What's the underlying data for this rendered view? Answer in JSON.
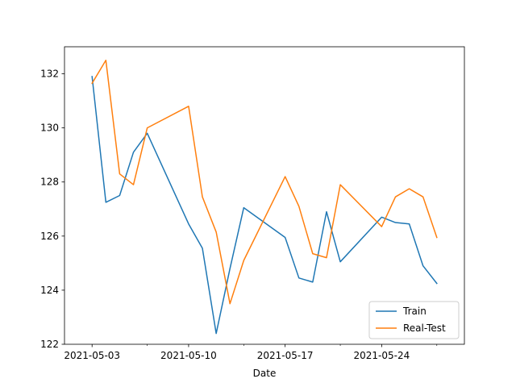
{
  "chart_data": {
    "type": "line",
    "xlabel": "Date",
    "ylabel": "",
    "x": [
      "2021-05-03",
      "2021-05-04",
      "2021-05-05",
      "2021-05-06",
      "2021-05-07",
      "2021-05-10",
      "2021-05-11",
      "2021-05-12",
      "2021-05-13",
      "2021-05-14",
      "2021-05-17",
      "2021-05-18",
      "2021-05-19",
      "2021-05-20",
      "2021-05-21",
      "2021-05-24",
      "2021-05-25",
      "2021-05-26",
      "2021-05-27",
      "2021-05-28"
    ],
    "x_ticks": [
      "2021-05-03",
      "2021-05-10",
      "2021-05-17",
      "2021-05-24"
    ],
    "y_ticks": [
      "122",
      "124",
      "126",
      "128",
      "130",
      "132"
    ],
    "ylim": [
      122,
      133
    ],
    "series": [
      {
        "name": "Train",
        "color": "#1f77b4",
        "values": [
          131.9,
          127.25,
          127.5,
          129.1,
          129.8,
          126.45,
          125.55,
          122.4,
          124.8,
          127.05,
          125.95,
          124.45,
          124.3,
          126.9,
          125.05,
          126.7,
          126.5,
          126.45,
          124.9,
          124.25
        ]
      },
      {
        "name": "Real-Test",
        "color": "#ff7f0e",
        "values": [
          131.65,
          132.5,
          128.3,
          127.9,
          130.0,
          130.8,
          127.45,
          126.15,
          123.5,
          125.1,
          128.2,
          127.1,
          125.35,
          125.2,
          127.9,
          126.35,
          127.45,
          127.75,
          127.45,
          125.95
        ]
      }
    ],
    "legend": "lower-right",
    "grid": false
  }
}
